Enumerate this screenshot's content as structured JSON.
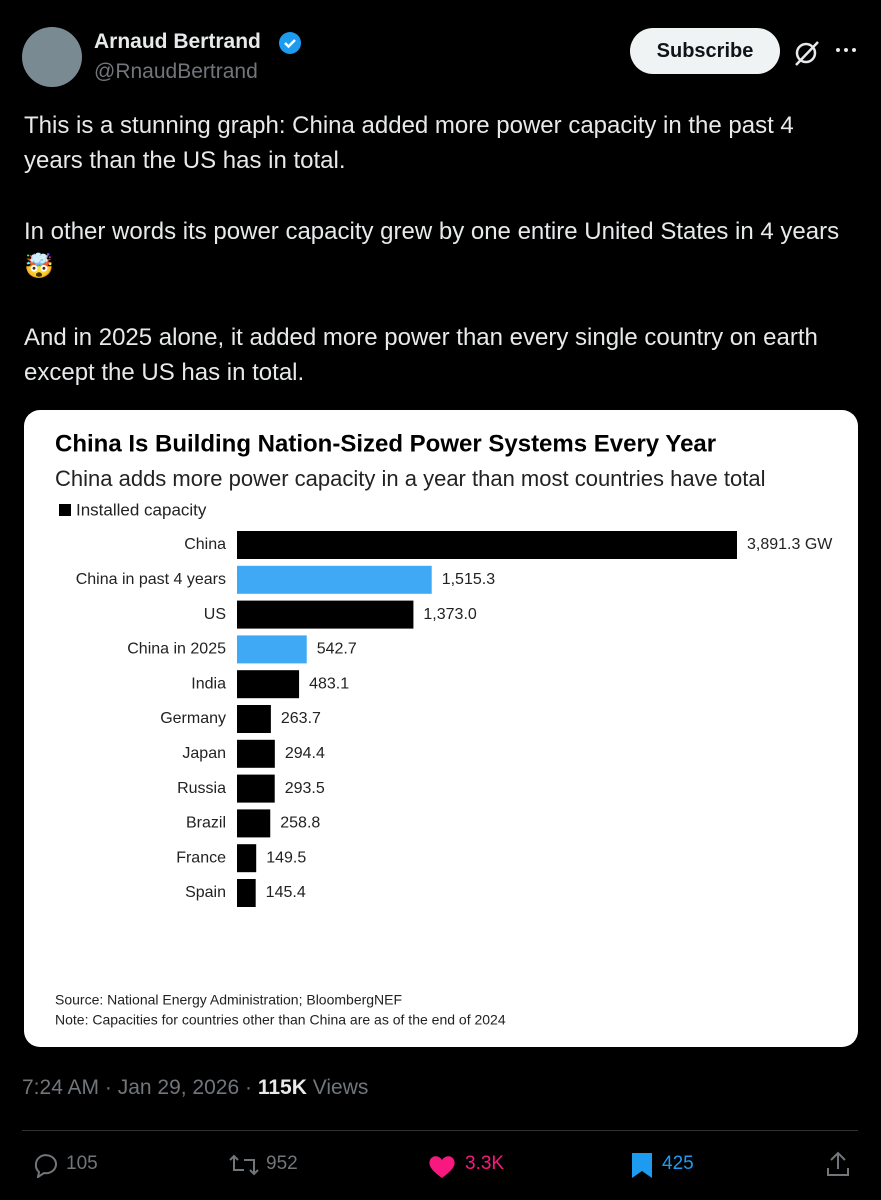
{
  "author": {
    "name": "Arnaud Bertrand",
    "handle": "@RnaudBertrand"
  },
  "subscribe": "Subscribe",
  "text": [
    "This is a stunning graph: China added more power capacity in the past 4 years than the US has in total.",
    "In other words its power capacity grew by one entire United States in 4 years 🤯",
    "And in 2025 alone, it added more power than every single country on earth except the US has in total."
  ],
  "chart_data": {
    "type": "bar",
    "orientation": "horizontal",
    "title": "China Is Building Nation-Sized Power Systems Every Year",
    "subtitle": "China adds more power capacity in a year than most countries have total",
    "categories": [
      "China",
      "China in past 4 years",
      "US",
      "China in 2025",
      "India",
      "Germany",
      "Japan",
      "Russia",
      "Brazil",
      "France",
      "Spain"
    ],
    "series": [
      {
        "name": "Installed capacity",
        "color": "#000000",
        "values": [
          3891.3,
          1515.3,
          1373.0,
          542.7,
          483.1,
          263.7,
          294.4,
          293.5,
          258.8,
          149.5,
          145.4
        ],
        "value_labels": [
          "3,891.3 GW",
          "1,515.3",
          "1,373.0",
          "542.7",
          "483.1",
          "263.7",
          "294.4",
          "293.5",
          "258.8",
          "149.5",
          "145.4"
        ],
        "colors": [
          "#000000",
          "#3fa9f5",
          "#000000",
          "#3fa9f5",
          "#000000",
          "#000000",
          "#000000",
          "#000000",
          "#000000",
          "#000000",
          "#000000"
        ]
      }
    ],
    "source": "Source: National Energy Administration; BloombergNEF",
    "note": "Note: Capacities for countries other than China are as of the end of 2024"
  },
  "footer": {
    "time": "7:24 AM · Jan 29, 2026",
    "separator": "·",
    "views": "115K",
    "views_label": "Views"
  },
  "actions": {
    "replies": "105",
    "reposts": "952",
    "likes": "3.3K",
    "bookmarks": "425"
  }
}
